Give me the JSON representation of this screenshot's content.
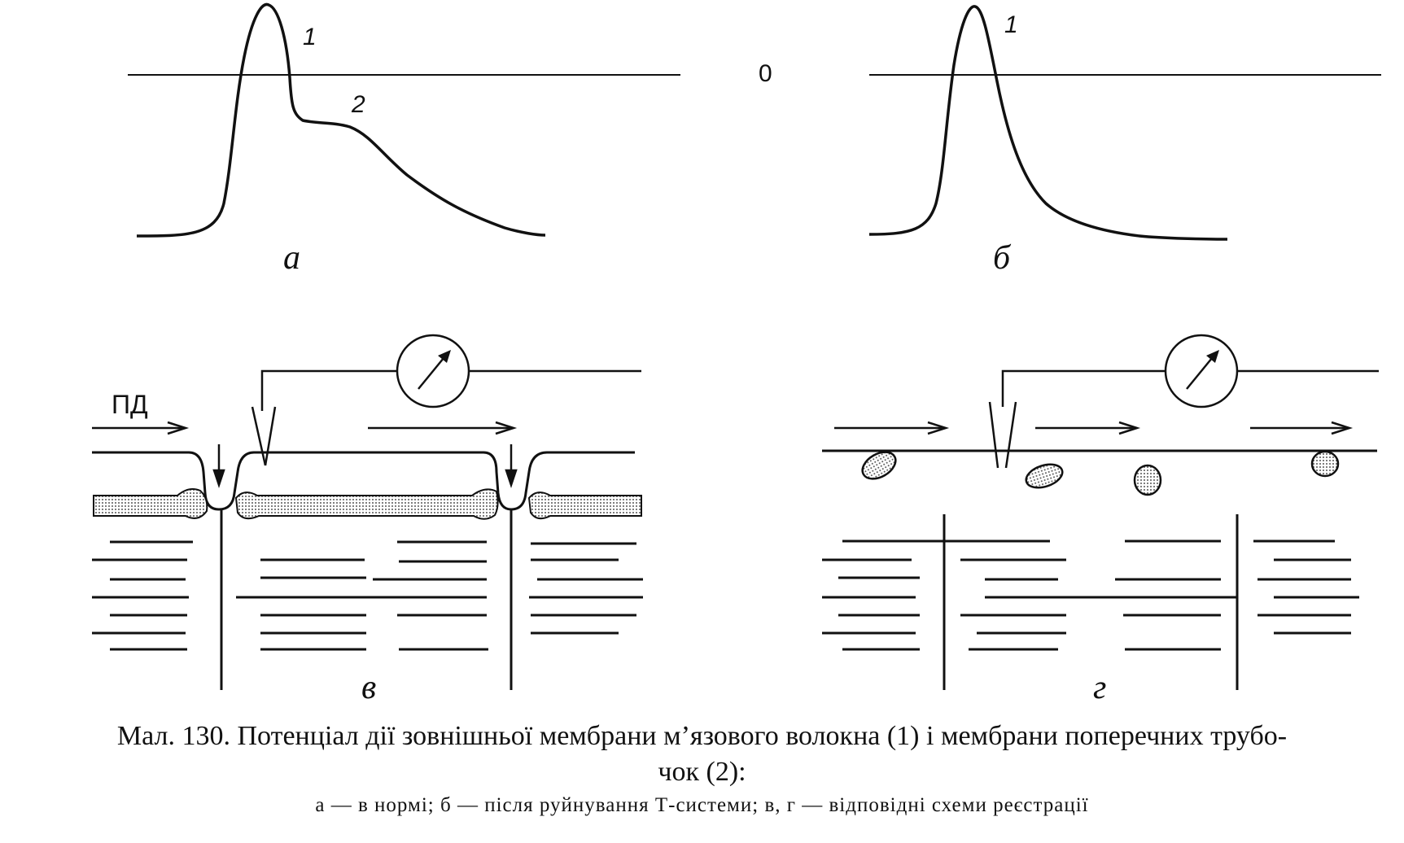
{
  "panels": {
    "a": {
      "letter": "а",
      "curve1": "1",
      "curve2": "2"
    },
    "b": {
      "letter": "б",
      "curve1": "1"
    },
    "v": {
      "letter": "в",
      "pd_label": "ПД"
    },
    "g": {
      "letter": "г"
    }
  },
  "zero_label": "0",
  "caption": {
    "line1": "Мал. 130. Потенціал дії зовнішньої мембрани м’язового волокна (1) і мембрани поперечних трубо-",
    "line2": "чок (2):",
    "line3": "а — в нормі; б — після руйнування Т-системи; в, г — відповідні схеми реєстрації"
  }
}
